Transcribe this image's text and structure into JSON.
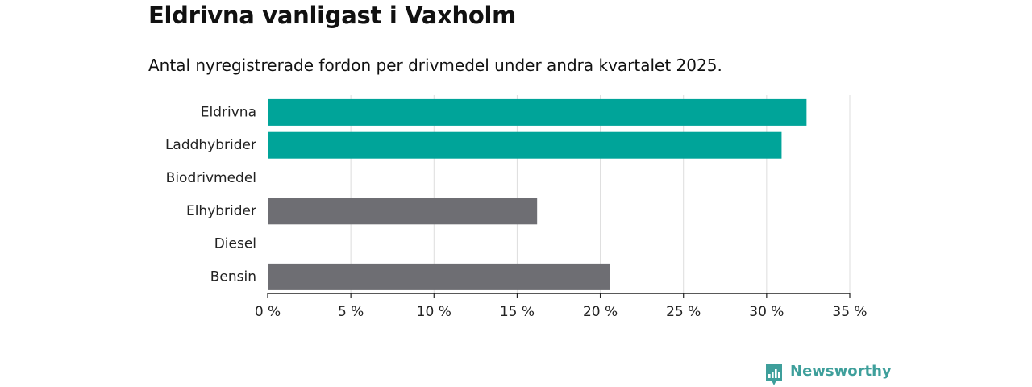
{
  "header": {
    "title": "Eldrivna vanligast i Vaxholm",
    "subtitle": "Antal nyregistrerade fordon per drivmedel under andra kvartalet 2025."
  },
  "chart_data": {
    "type": "bar",
    "orientation": "horizontal",
    "categories": [
      "Eldrivna",
      "Laddhybrider",
      "Biodrivmedel",
      "Elhybrider",
      "Diesel",
      "Bensin"
    ],
    "values": [
      32.4,
      30.9,
      0,
      16.2,
      0,
      20.6
    ],
    "bar_colors": [
      "#00a499",
      "#00a499",
      "#00a499",
      "#6e6e73",
      "#6e6e73",
      "#6e6e73"
    ],
    "xlim": [
      0,
      35
    ],
    "x_ticks": [
      0,
      5,
      10,
      15,
      20,
      25,
      30,
      35
    ],
    "x_tick_labels": [
      "0 %",
      "5 %",
      "10 %",
      "15 %",
      "20 %",
      "25 %",
      "30 %",
      "35 %"
    ],
    "grid": true,
    "legend": "none",
    "xlabel": "",
    "ylabel": ""
  },
  "brand": {
    "name": "Newsworthy",
    "color": "#3e9f9b",
    "icon": "bar-chart-icon"
  }
}
